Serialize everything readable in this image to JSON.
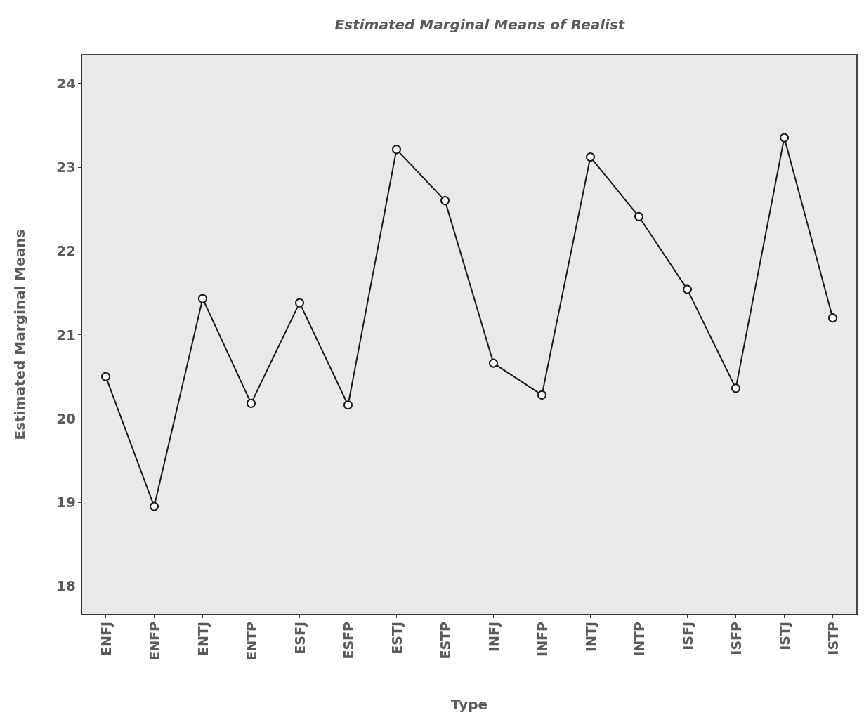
{
  "chart_data": {
    "type": "line",
    "title": "Estimated Marginal Means of Realist",
    "xlabel": "Type",
    "ylabel": "Estimated Marginal Means",
    "categories": [
      "ENFJ",
      "ENFP",
      "ENTJ",
      "ENTP",
      "ESFJ",
      "ESFP",
      "ESTJ",
      "ESTP",
      "INFJ",
      "INFP",
      "INTJ",
      "INTP",
      "ISFJ",
      "ISFP",
      "ISTJ",
      "ISTP"
    ],
    "series": [
      {
        "color": "#1a1a1a",
        "values": [
          20.5,
          18.95,
          21.43,
          20.18,
          21.38,
          20.16,
          23.21,
          22.6,
          20.66,
          20.28,
          23.12,
          22.41,
          21.54,
          20.36,
          23.35,
          21.2
        ]
      }
    ],
    "ylim": [
      17.66,
      24.34
    ],
    "yticks": [
      18,
      19,
      20,
      21,
      22,
      23,
      24
    ],
    "grid": false,
    "marker": "circle",
    "line_style": "solid"
  }
}
